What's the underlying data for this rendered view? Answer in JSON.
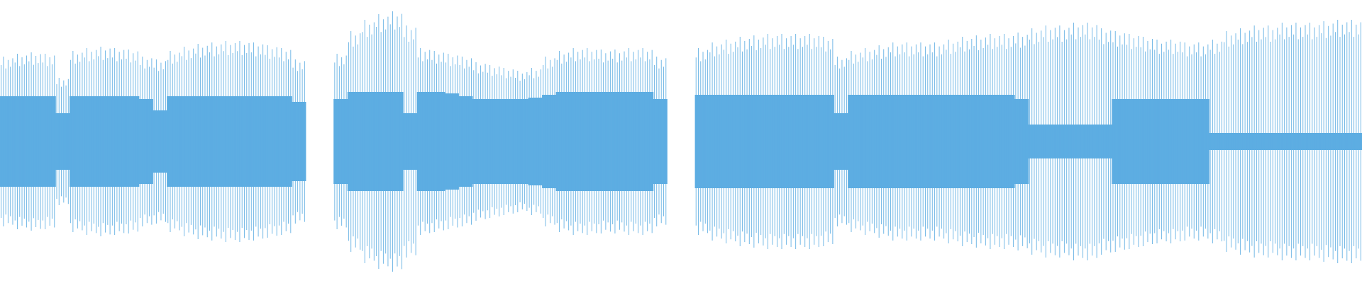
{
  "chart_data": {
    "type": "waveform",
    "color": "#5dade2",
    "values": [
      0.6,
      0.62,
      0.63,
      0.62,
      0.45,
      0.64,
      0.66,
      0.67,
      0.66,
      0.65,
      0.6,
      0.58,
      0.64,
      0.67,
      0.69,
      0.7,
      0.71,
      0.71,
      0.7,
      0.68,
      0.66,
      0.58,
      null,
      null,
      0.62,
      0.78,
      0.86,
      0.9,
      0.92,
      0.82,
      0.66,
      0.64,
      0.62,
      0.6,
      0.56,
      0.54,
      0.52,
      0.5,
      0.52,
      0.6,
      0.64,
      0.66,
      0.66,
      0.65,
      0.65,
      0.66,
      0.66,
      0.6,
      null,
      null,
      0.66,
      0.7,
      0.72,
      0.74,
      0.75,
      0.76,
      0.76,
      0.76,
      0.76,
      0.74,
      0.6,
      0.64,
      0.66,
      0.68,
      0.7,
      0.7,
      0.7,
      0.7,
      0.72,
      0.74,
      0.75,
      0.76,
      0.76,
      0.77,
      0.8,
      0.82,
      0.82,
      0.84,
      0.84,
      0.8,
      0.78,
      0.76,
      0.74,
      0.72,
      0.72,
      0.7,
      0.7,
      0.72,
      0.78,
      0.8,
      0.82,
      0.82,
      0.84,
      0.84,
      0.84,
      0.85,
      0.86,
      0.86
    ],
    "core_values": [
      0.32,
      0.32,
      0.32,
      0.32,
      0.2,
      0.32,
      0.32,
      0.32,
      0.32,
      0.32,
      0.3,
      0.22,
      0.32,
      0.32,
      0.32,
      0.32,
      0.32,
      0.32,
      0.32,
      0.32,
      0.32,
      0.28,
      null,
      null,
      0.3,
      0.35,
      0.35,
      0.35,
      0.35,
      0.2,
      0.35,
      0.35,
      0.34,
      0.32,
      0.3,
      0.3,
      0.3,
      0.3,
      0.31,
      0.33,
      0.35,
      0.35,
      0.35,
      0.35,
      0.35,
      0.35,
      0.35,
      0.3,
      null,
      null,
      0.33,
      0.33,
      0.33,
      0.33,
      0.33,
      0.33,
      0.33,
      0.33,
      0.33,
      0.33,
      0.2,
      0.33,
      0.33,
      0.33,
      0.33,
      0.33,
      0.33,
      0.33,
      0.33,
      0.33,
      0.33,
      0.33,
      0.33,
      0.3,
      0.12,
      0.12,
      0.12,
      0.12,
      0.12,
      0.12,
      0.3,
      0.3,
      0.3,
      0.3,
      0.3,
      0.3,
      0.3,
      0.06,
      0.06,
      0.06,
      0.06,
      0.06,
      0.06,
      0.06,
      0.06,
      0.06,
      0.06,
      0.06
    ]
  }
}
